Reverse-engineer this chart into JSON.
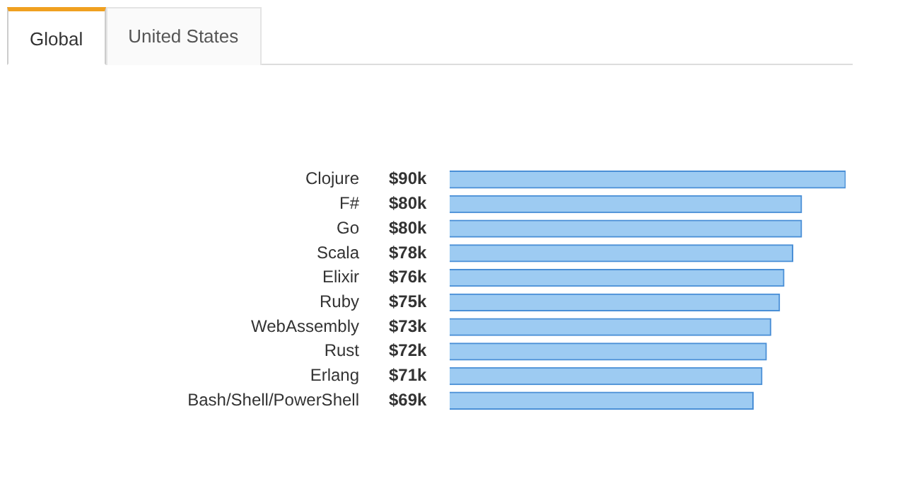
{
  "chart_data": {
    "type": "bar",
    "orientation": "horizontal",
    "annotations": [
      "Global",
      "United States"
    ],
    "categories": [
      "Clojure",
      "F#",
      "Go",
      "Scala",
      "Elixir",
      "Ruby",
      "WebAssembly",
      "Rust",
      "Erlang",
      "Bash/Shell/PowerShell"
    ],
    "values": [
      90,
      80,
      80,
      78,
      76,
      75,
      73,
      72,
      71,
      69
    ],
    "value_labels": [
      "$90k",
      "$80k",
      "$80k",
      "$78k",
      "$76k",
      "$75k",
      "$73k",
      "$72k",
      "$71k",
      "$69k"
    ],
    "color": "#9dcbf2",
    "legend": false
  }
}
